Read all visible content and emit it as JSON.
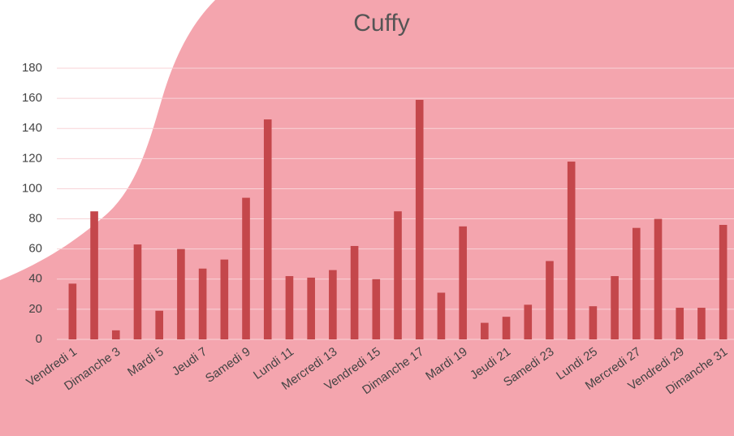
{
  "chart_data": {
    "type": "bar",
    "title": "Cuffy",
    "categories": [
      "Vendredi 1",
      null,
      "Dimanche 3",
      null,
      "Mardi 5",
      null,
      "Jeudi 7",
      null,
      "Samedi 9",
      null,
      "Lundi 11",
      null,
      "Mercredi 13",
      null,
      "Vendredi 15",
      null,
      "Dimanche 17",
      null,
      "Mardi 19",
      null,
      "Jeudi 21",
      null,
      "Samedi 23",
      null,
      "Lundi 25",
      null,
      "Mercredi 27",
      null,
      "Vendredi 29",
      null,
      "Dimanche 31"
    ],
    "values": [
      37,
      85,
      6,
      63,
      19,
      60,
      47,
      53,
      94,
      146,
      42,
      41,
      46,
      62,
      40,
      85,
      159,
      31,
      75,
      11,
      15,
      23,
      52,
      118,
      22,
      42,
      74,
      80,
      21,
      21,
      76
    ],
    "color": "#c4474b",
    "ylim": [
      0,
      180
    ],
    "yticks": [
      0,
      20,
      40,
      60,
      80,
      100,
      120,
      140,
      160,
      180
    ],
    "grid": true
  }
}
